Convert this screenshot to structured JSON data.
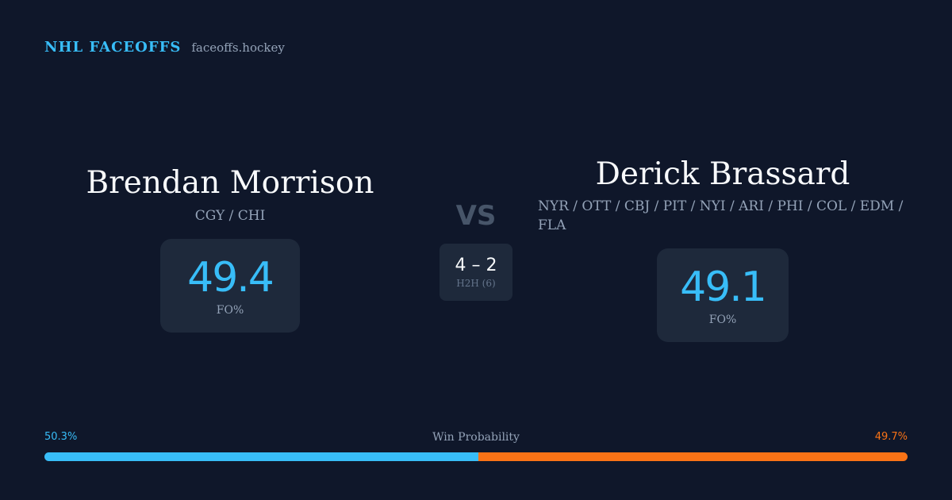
{
  "brand": {
    "title": "NHL FACEOFFS",
    "site": "faceoffs.hockey"
  },
  "player1": {
    "name": "Brendan Morrison",
    "teams": "CGY / CHI",
    "fo_pct": "49.4",
    "fo_label": "FO%"
  },
  "player2": {
    "name": "Derick Brassard",
    "teams": "NYR / OTT / CBJ / PIT / NYI / ARI / PHI / COL / EDM / FLA",
    "fo_pct": "49.1",
    "fo_label": "FO%"
  },
  "matchup": {
    "vs": "VS",
    "h2h_score": "4 – 2",
    "h2h_label": "H2H (6)"
  },
  "win_probability": {
    "title": "Win Probability",
    "left_label": "50.3%",
    "right_label": "49.7%",
    "left_value": 50.3,
    "right_value": 49.7,
    "left_color": "#38bdf8",
    "right_color": "#f97316"
  },
  "colors": {
    "background": "#0f172a",
    "card": "#1e293b",
    "accent": "#38bdf8",
    "muted": "#94a3b8"
  }
}
